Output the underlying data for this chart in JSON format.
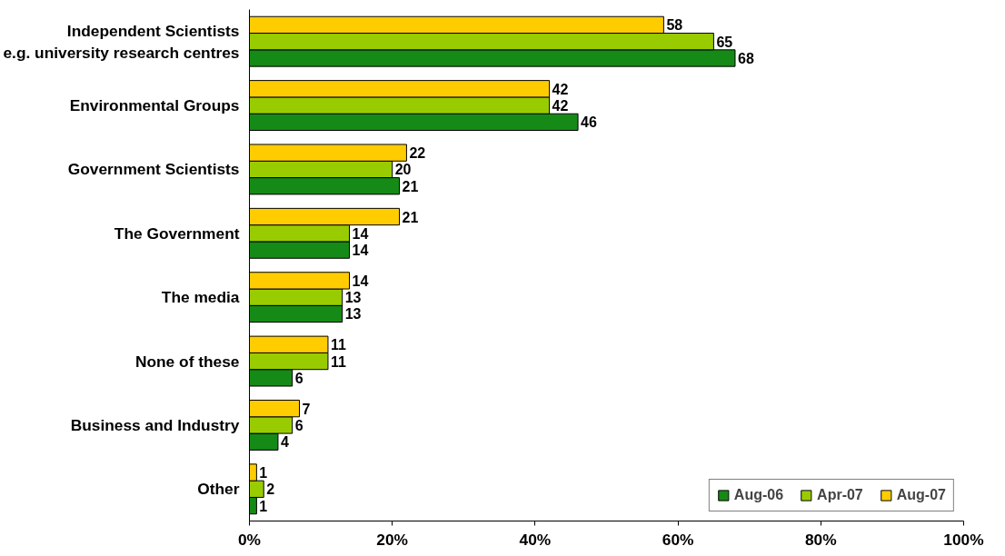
{
  "chart_data": {
    "type": "bar",
    "orientation": "horizontal",
    "categories": [
      "Independent Scientists\ne.g. university research centres",
      "Environmental Groups",
      "Government Scientists",
      "The Government",
      "The media",
      "None of these",
      "Business and Industry",
      "Other"
    ],
    "series": [
      {
        "name": "Aug-06",
        "color": "#168a16",
        "values": [
          68,
          46,
          21,
          14,
          13,
          6,
          4,
          1
        ]
      },
      {
        "name": "Apr-07",
        "color": "#99cc00",
        "values": [
          65,
          42,
          20,
          14,
          13,
          11,
          6,
          2
        ]
      },
      {
        "name": "Aug-07",
        "color": "#ffcc00",
        "values": [
          58,
          42,
          22,
          21,
          14,
          11,
          7,
          1
        ]
      }
    ],
    "xlim": [
      0,
      100
    ],
    "xticks": [
      {
        "value": 0,
        "label": "0%"
      },
      {
        "value": 20,
        "label": "20%"
      },
      {
        "value": 40,
        "label": "40%"
      },
      {
        "value": 60,
        "label": "60%"
      },
      {
        "value": 80,
        "label": "80%"
      },
      {
        "value": 100,
        "label": "100%"
      }
    ],
    "data_labels": true,
    "grid": false,
    "legend": "bottom right"
  }
}
